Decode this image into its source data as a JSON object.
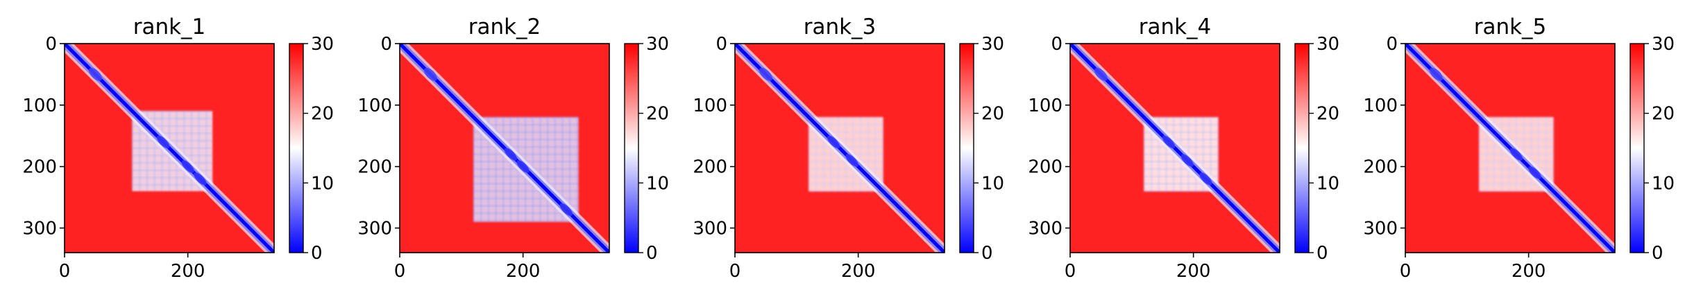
{
  "chart_data": [
    {
      "type": "heatmap",
      "title": "rank_1",
      "n": 340,
      "x_ticks": [
        0,
        200
      ],
      "x_tick_labels": [
        "0",
        "200"
      ],
      "y_ticks": [
        0,
        100,
        200,
        300
      ],
      "y_tick_labels": [
        "0",
        "100",
        "200",
        "300"
      ],
      "colorbar": {
        "range": [
          0,
          30
        ],
        "ticks": [
          0,
          10,
          20,
          30
        ],
        "tick_labels": [
          "0",
          "10",
          "20",
          "30"
        ]
      },
      "diagonal_value": 0,
      "background_value": 28,
      "core_region": [
        110,
        240
      ],
      "core_value": 14,
      "contact_blobs": [
        [
          160,
          160
        ],
        [
          200,
          200
        ],
        [
          220,
          220
        ]
      ]
    },
    {
      "type": "heatmap",
      "title": "rank_2",
      "n": 340,
      "x_ticks": [
        0,
        200
      ],
      "x_tick_labels": [
        "0",
        "200"
      ],
      "y_ticks": [
        0,
        100,
        200,
        300
      ],
      "y_tick_labels": [
        "0",
        "100",
        "200",
        "300"
      ],
      "colorbar": {
        "range": [
          0,
          30
        ],
        "ticks": [
          0,
          10,
          20,
          30
        ],
        "tick_labels": [
          "0",
          "10",
          "20",
          "30"
        ]
      },
      "diagonal_value": 0,
      "background_value": 28,
      "core_region": [
        120,
        290
      ],
      "core_value": 13,
      "contact_blobs": [
        [
          180,
          180
        ],
        [
          200,
          200
        ],
        [
          270,
          270
        ]
      ]
    },
    {
      "type": "heatmap",
      "title": "rank_3",
      "n": 340,
      "x_ticks": [
        0,
        200
      ],
      "x_tick_labels": [
        "0",
        "200"
      ],
      "y_ticks": [
        0,
        100,
        200,
        300
      ],
      "y_tick_labels": [
        "0",
        "100",
        "200",
        "300"
      ],
      "colorbar": {
        "range": [
          0,
          30
        ],
        "ticks": [
          0,
          10,
          20,
          30
        ],
        "tick_labels": [
          "0",
          "10",
          "20",
          "30"
        ]
      },
      "diagonal_value": 0,
      "background_value": 28,
      "core_region": [
        120,
        240
      ],
      "core_value": 16,
      "contact_blobs": [
        [
          160,
          160
        ],
        [
          190,
          190
        ]
      ]
    },
    {
      "type": "heatmap",
      "title": "rank_4",
      "n": 340,
      "x_ticks": [
        0,
        200
      ],
      "x_tick_labels": [
        "0",
        "200"
      ],
      "y_ticks": [
        0,
        100,
        200,
        300
      ],
      "y_tick_labels": [
        "0",
        "100",
        "200",
        "300"
      ],
      "colorbar": {
        "range": [
          0,
          30
        ],
        "ticks": [
          0,
          10,
          20,
          30
        ],
        "tick_labels": [
          "0",
          "10",
          "20",
          "30"
        ]
      },
      "diagonal_value": 0,
      "background_value": 28,
      "core_region": [
        120,
        240
      ],
      "core_value": 15,
      "contact_blobs": [
        [
          160,
          160
        ],
        [
          190,
          190
        ],
        [
          220,
          220
        ]
      ]
    },
    {
      "type": "heatmap",
      "title": "rank_5",
      "n": 340,
      "x_ticks": [
        0,
        200
      ],
      "x_tick_labels": [
        "0",
        "200"
      ],
      "y_ticks": [
        0,
        100,
        200,
        300
      ],
      "y_tick_labels": [
        "0",
        "100",
        "200",
        "300"
      ],
      "colorbar": {
        "range": [
          0,
          30
        ],
        "ticks": [
          0,
          10,
          20,
          30
        ],
        "tick_labels": [
          "0",
          "10",
          "20",
          "30"
        ]
      },
      "diagonal_value": 0,
      "background_value": 28,
      "core_region": [
        120,
        240
      ],
      "core_value": 16,
      "contact_blobs": [
        [
          180,
          180
        ],
        [
          210,
          210
        ]
      ]
    }
  ],
  "colors": {
    "low": "#0000ff",
    "mid": "#ffffff",
    "high": "#ff0000",
    "axis": "#000000"
  }
}
